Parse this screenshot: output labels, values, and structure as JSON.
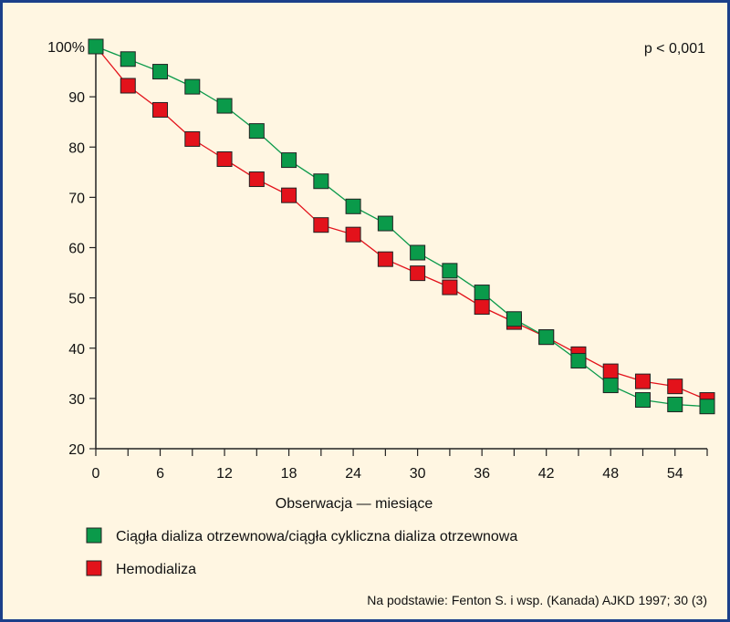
{
  "chart_data": {
    "type": "line",
    "xlabel": "Obserwacja — miesiące",
    "ylabel": "",
    "annotation": "p < 0,001",
    "xlim": [
      0,
      57
    ],
    "ylim": [
      20,
      100
    ],
    "xticks": [
      "0",
      "6",
      "12",
      "18",
      "24",
      "30",
      "36",
      "42",
      "48",
      "54"
    ],
    "xtick_values": [
      0,
      6,
      12,
      18,
      24,
      30,
      36,
      42,
      48,
      54
    ],
    "yticks": [
      "20",
      "30",
      "40",
      "50",
      "60",
      "70",
      "80",
      "90",
      "100%"
    ],
    "ytick_values": [
      20,
      30,
      40,
      50,
      60,
      70,
      80,
      90,
      100
    ],
    "grid": false,
    "legend_position": "bottom-left",
    "series": [
      {
        "name": "Ciągła dializa otrzewnowa/ciągła cykliczna dializa otrzewnowa",
        "color": "#0a9a4a",
        "x": [
          0,
          3,
          6,
          9,
          12,
          15,
          18,
          21,
          24,
          27,
          30,
          33,
          36,
          39,
          42,
          45,
          48,
          51,
          54,
          57
        ],
        "y": [
          100,
          97.5,
          95,
          92,
          88.2,
          83.2,
          77.4,
          73.2,
          68.2,
          64.8,
          59,
          55.4,
          51.1,
          45.8,
          42.2,
          37.5,
          32.6,
          29.7,
          28.8,
          28.4
        ]
      },
      {
        "name": "Hemodializa",
        "color": "#e3121b",
        "x": [
          0,
          3,
          6,
          9,
          12,
          15,
          18,
          21,
          24,
          27,
          30,
          33,
          36,
          39,
          42,
          45,
          48,
          51,
          54,
          57
        ],
        "y": [
          100,
          92.2,
          87.4,
          81.6,
          77.6,
          73.6,
          70.4,
          64.5,
          62.6,
          57.7,
          54.9,
          52.1,
          48.2,
          45.2,
          42.2,
          38.8,
          35.4,
          33.4,
          32.4,
          29.7
        ]
      }
    ]
  },
  "source": "Na podstawie: Fenton S. i wsp. (Kanada) AJKD 1997; 30 (3)"
}
